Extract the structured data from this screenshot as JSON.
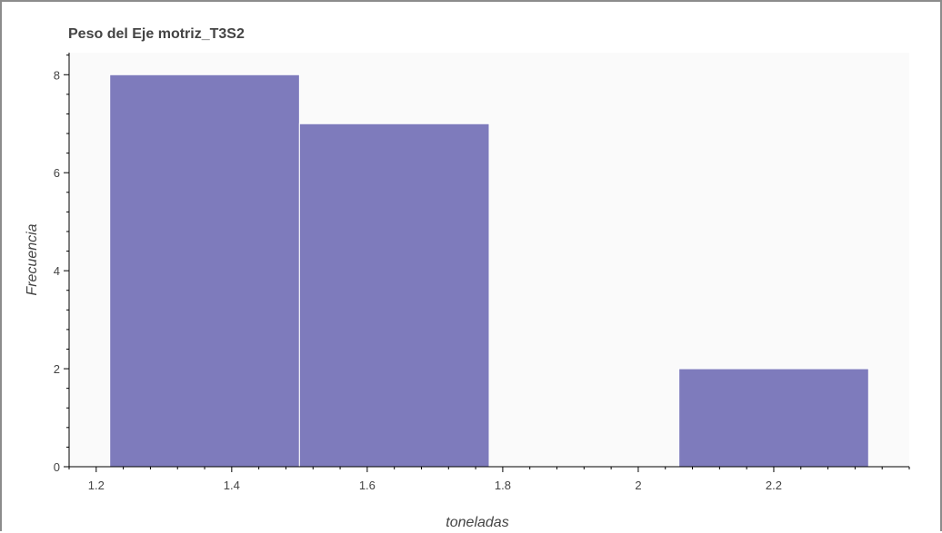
{
  "chart_data": {
    "type": "bar",
    "title": "Peso del Eje motriz_T3S2",
    "xlabel": "toneladas",
    "ylabel": "Frecuencia",
    "bins": [
      {
        "left": 1.22,
        "right": 1.5,
        "value": 8
      },
      {
        "left": 1.5,
        "right": 1.78,
        "value": 7
      },
      {
        "left": 1.78,
        "right": 2.06,
        "value": 0
      },
      {
        "left": 2.06,
        "right": 2.34,
        "value": 2
      }
    ],
    "xlim": [
      1.16,
      2.4
    ],
    "ylim": [
      0,
      8.45
    ],
    "x_ticks": [
      1.2,
      1.4,
      1.6,
      1.8,
      2,
      2.2
    ],
    "x_tick_labels": [
      "1.2",
      "1.4",
      "1.6",
      "1.8",
      "2",
      "2.2"
    ],
    "y_ticks": [
      0,
      2,
      4,
      6,
      8
    ],
    "y_tick_labels": [
      "0",
      "2",
      "4",
      "6",
      "8"
    ],
    "bar_color": "#7e7bbc",
    "bar_edge_color": "#ffffff",
    "plot_background": "#fafafa",
    "grid": false,
    "legend": "none"
  }
}
